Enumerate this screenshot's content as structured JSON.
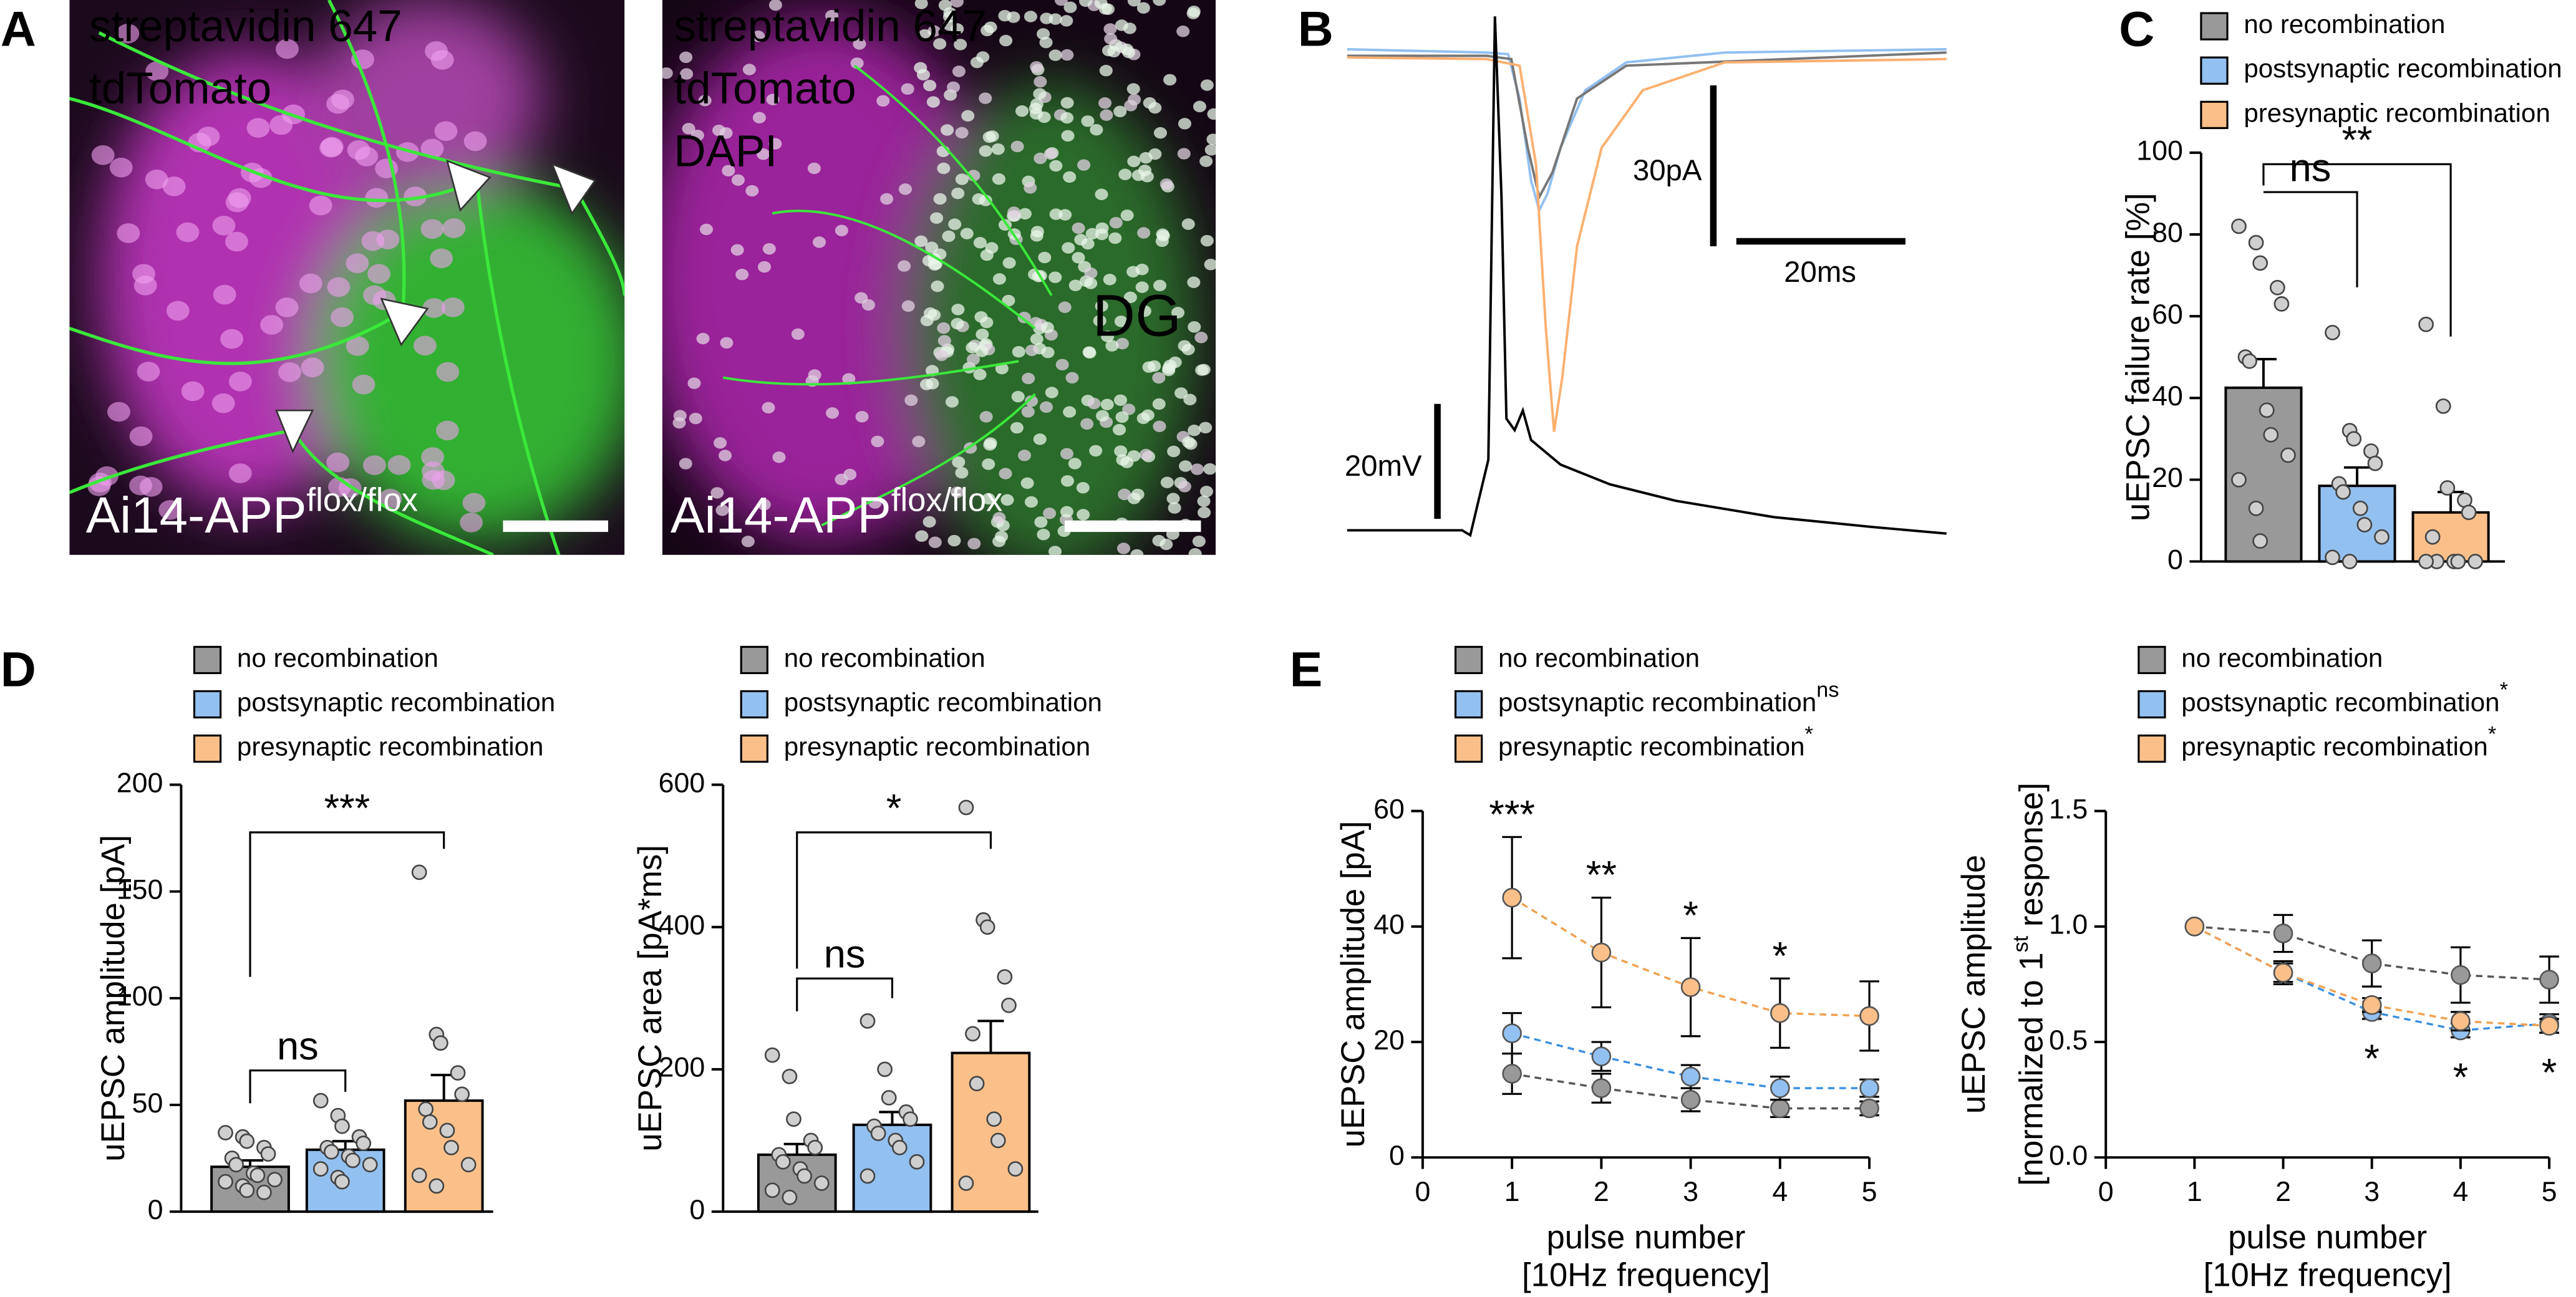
{
  "panel_labels": [
    "A",
    "B",
    "C",
    "D",
    "E"
  ],
  "images": [
    {
      "stains": [
        {
          "name": "streptavidin 647",
          "color": "#2fe02f"
        },
        {
          "name": "tdTomato",
          "color": "#e020e0"
        }
      ],
      "genotype": "Ai14-APP",
      "genotype_sup": "flox/flox"
    },
    {
      "stains": [
        {
          "name": "streptavidin 647",
          "color": "#2fe02f"
        },
        {
          "name": "tdTomato",
          "color": "#e020e0"
        },
        {
          "name": "DAPI",
          "color": "#ffffff"
        }
      ],
      "region": "DG",
      "genotype": "Ai14-APP",
      "genotype_sup": "flox/flox"
    }
  ],
  "traces": {
    "current_scale": "30pA",
    "time_scale": "20ms",
    "voltage_scale": "20mV"
  },
  "chart_data": [
    {
      "type": "bar",
      "ylabel": "uEPSC failure rate [%]",
      "ylim": [
        0,
        100
      ],
      "yticks": [
        0,
        20,
        40,
        60,
        80,
        100
      ],
      "series": [
        {
          "name": "no recombination",
          "color": "#999999",
          "value": 42.5,
          "error": 7,
          "points": [
            82,
            78,
            73,
            67,
            63,
            50,
            49,
            37,
            31,
            26,
            20,
            13,
            5
          ]
        },
        {
          "name": "postsynaptic recombination",
          "color": "#92c0f0",
          "value": 18.5,
          "error": 4.5,
          "points": [
            56,
            32,
            30,
            27,
            24,
            19,
            17,
            13,
            9,
            6,
            1,
            0
          ]
        },
        {
          "name": "presynaptic recombination",
          "color": "#fbc089",
          "value": 12,
          "error": 5,
          "points": [
            58,
            38,
            18,
            15,
            12,
            6,
            0,
            0,
            0,
            0,
            0
          ]
        }
      ],
      "annotations": [
        {
          "text": "ns",
          "groups": [
            0,
            1
          ]
        },
        {
          "text": "**",
          "groups": [
            0,
            2
          ]
        }
      ]
    },
    {
      "type": "bar",
      "ylabel": "uEPSC amplitude [pA]",
      "ylim": [
        0,
        200
      ],
      "yticks": [
        0,
        50,
        100,
        150,
        200
      ],
      "series": [
        {
          "name": "no recombination",
          "color": "#999999",
          "value": 21,
          "error": 3,
          "points": [
            37,
            35,
            33,
            30,
            27,
            25,
            22,
            18,
            17,
            15,
            14,
            12,
            10,
            9
          ]
        },
        {
          "name": "postsynaptic recombination",
          "color": "#92c0f0",
          "value": 29,
          "error": 4,
          "points": [
            52,
            45,
            40,
            35,
            32,
            30,
            28,
            26,
            24,
            22,
            20,
            16,
            14
          ]
        },
        {
          "name": "presynaptic recombination",
          "color": "#fbc089",
          "value": 52,
          "error": 12,
          "points": [
            159,
            83,
            79,
            65,
            55,
            48,
            42,
            38,
            30,
            22,
            17,
            12
          ]
        }
      ],
      "annotations": [
        {
          "text": "ns",
          "groups": [
            0,
            1
          ]
        },
        {
          "text": "***",
          "groups": [
            0,
            2
          ]
        }
      ]
    },
    {
      "type": "bar",
      "ylabel": "uEPSC area [pA*ms]",
      "ylim": [
        0,
        600
      ],
      "yticks": [
        0,
        200,
        400,
        600
      ],
      "series": [
        {
          "name": "no recombination",
          "color": "#999999",
          "value": 80,
          "error": 15,
          "points": [
            220,
            190,
            130,
            100,
            90,
            80,
            70,
            60,
            50,
            40,
            30,
            20
          ]
        },
        {
          "name": "postsynaptic recombination",
          "color": "#92c0f0",
          "value": 122,
          "error": 18,
          "points": [
            268,
            200,
            160,
            140,
            130,
            120,
            110,
            100,
            90,
            70,
            50
          ]
        },
        {
          "name": "presynaptic recombination",
          "color": "#fbc089",
          "value": 223,
          "error": 45,
          "points": [
            568,
            410,
            400,
            330,
            290,
            250,
            180,
            130,
            100,
            60,
            40
          ]
        }
      ],
      "annotations": [
        {
          "text": "ns",
          "groups": [
            0,
            1
          ]
        },
        {
          "text": "*",
          "groups": [
            0,
            2
          ]
        }
      ]
    },
    {
      "type": "line",
      "ylabel": "uEPSC amplitude [pA]",
      "xlabel": [
        "pulse number",
        "[10Hz frequency]"
      ],
      "x": [
        1,
        2,
        3,
        4,
        5
      ],
      "xlim": [
        0,
        5
      ],
      "xticks": [
        0,
        1,
        2,
        3,
        4,
        5
      ],
      "ylim": [
        0,
        60
      ],
      "yticks": [
        0,
        20,
        40,
        60
      ],
      "series": [
        {
          "name": "no recombination",
          "color": "#999999",
          "values": [
            14.5,
            12,
            10,
            8.5,
            8.5
          ],
          "errors": [
            3.5,
            2.5,
            2,
            1.5,
            1.2
          ]
        },
        {
          "name": "postsynaptic recombination",
          "name_sup": "ns",
          "color": "#92c0f0",
          "values": [
            21.5,
            17.5,
            14,
            12,
            12
          ],
          "errors": [
            3.5,
            2.5,
            2,
            2,
            1.5
          ]
        },
        {
          "name": "presynaptic recombination",
          "name_sup": "*",
          "color": "#fbc089",
          "values": [
            45,
            35.5,
            29.5,
            25,
            24.5
          ],
          "errors": [
            10.5,
            9.5,
            8.5,
            6,
            6
          ]
        }
      ],
      "annotation_side": "above",
      "annotations": [
        {
          "x": 1,
          "text": "***"
        },
        {
          "x": 2,
          "text": "**"
        },
        {
          "x": 3,
          "text": "*"
        },
        {
          "x": 4,
          "text": "*"
        }
      ]
    },
    {
      "type": "line",
      "ylabel": "uEPSC amplitude",
      "ylabel2": [
        "[normalized to 1",
        "st",
        " response]"
      ],
      "xlabel": [
        "pulse number",
        "[10Hz frequency]"
      ],
      "x": [
        1,
        2,
        3,
        4,
        5
      ],
      "xlim": [
        0,
        5
      ],
      "xticks": [
        0,
        1,
        2,
        3,
        4,
        5
      ],
      "ylim": [
        0,
        1.5
      ],
      "yticks": [
        {
          "value": 0,
          "label": "0.0"
        },
        0.5,
        {
          "value": 1,
          "label": "1.0"
        },
        1.5
      ],
      "series": [
        {
          "name": "no recombination",
          "color": "#999999",
          "values": [
            1,
            0.97,
            0.84,
            0.79,
            0.77
          ],
          "errors": [
            0,
            0.08,
            0.1,
            0.12,
            0.1
          ]
        },
        {
          "name": "postsynaptic recombination",
          "name_sup": "*",
          "color": "#92c0f0",
          "values": [
            1,
            0.8,
            0.63,
            0.55,
            0.58
          ],
          "errors": [
            0,
            0.04,
            0.03,
            0.03,
            0.04
          ]
        },
        {
          "name": "presynaptic recombination",
          "name_sup": "*",
          "color": "#fbc089",
          "values": [
            1,
            0.8,
            0.66,
            0.59,
            0.57
          ],
          "errors": [
            0,
            0.05,
            0.03,
            0.04,
            0.03
          ]
        }
      ],
      "annotation_side": "below",
      "annotations": [
        {
          "x": 3,
          "text": "*"
        },
        {
          "x": 4,
          "text": "*"
        },
        {
          "x": 5,
          "text": "*"
        }
      ]
    }
  ]
}
